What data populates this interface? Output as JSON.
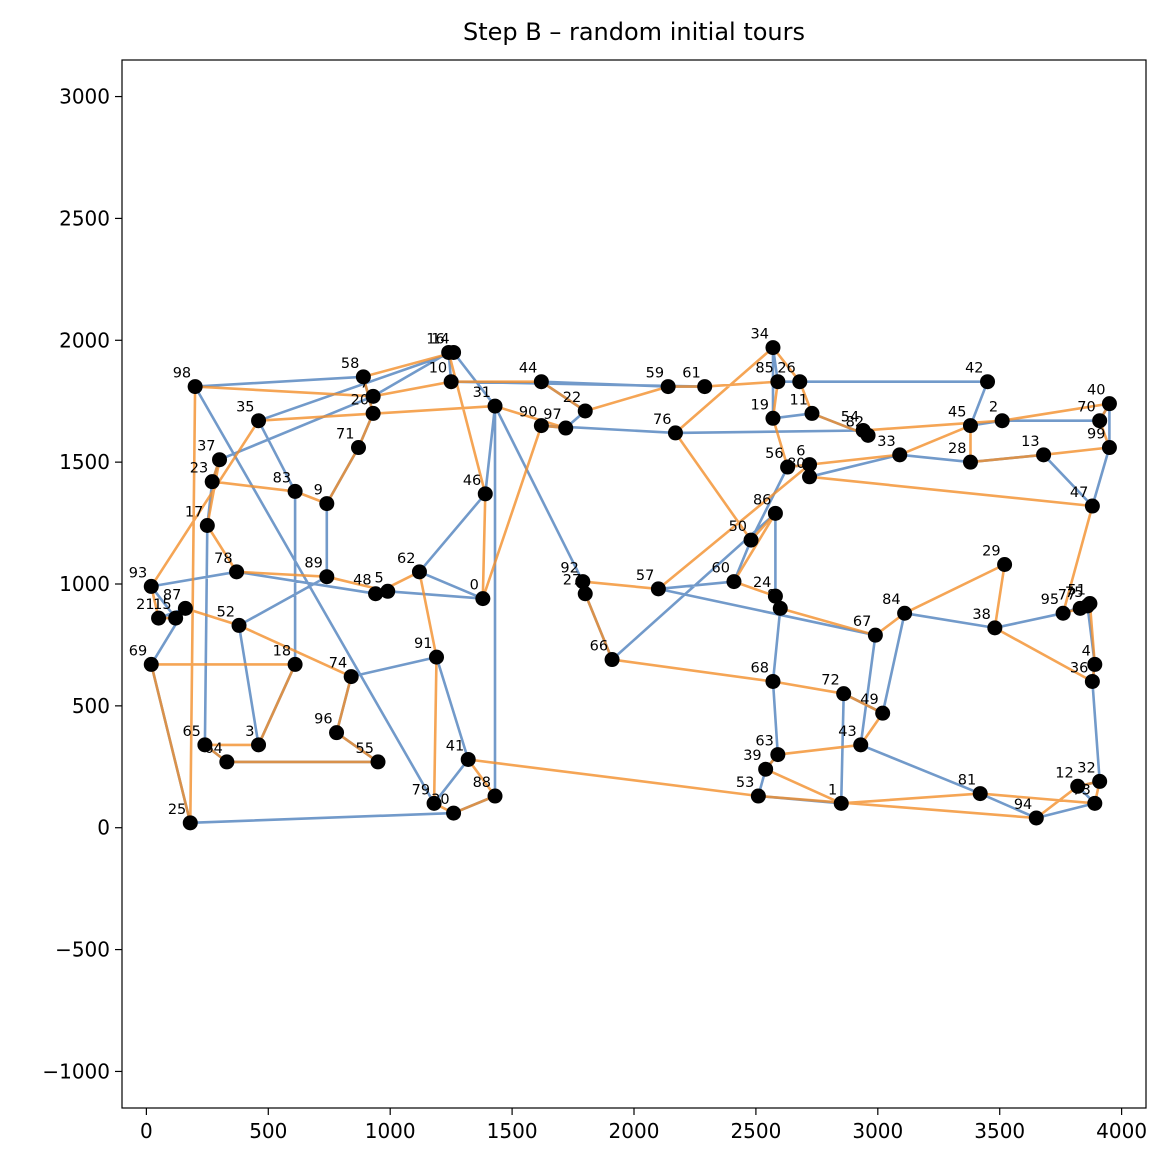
{
  "chart_data": {
    "type": "scatter",
    "title": "Step B – random initial tours",
    "xlabel": "",
    "ylabel": "",
    "xlim": [
      -100,
      4100
    ],
    "ylim": [
      -1150,
      3150
    ],
    "xticks": [
      0,
      500,
      1000,
      1500,
      2000,
      2500,
      3000,
      3500,
      4000
    ],
    "yticks": [
      -1000,
      -500,
      0,
      500,
      1000,
      1500,
      2000,
      2500,
      3000
    ],
    "xtick_labels": [
      "0",
      "500",
      "1000",
      "1500",
      "2000",
      "2500",
      "3000",
      "3500",
      "4000"
    ],
    "ytick_labels": [
      "−1000",
      "−500",
      "0",
      "500",
      "1000",
      "1500",
      "2000",
      "2500",
      "3000"
    ],
    "grid": false,
    "colors": {
      "tour_blue": "#4f81bd",
      "tour_orange": "#f28e2b",
      "city": "#000000"
    },
    "cities": [
      {
        "id": "0",
        "x": 1380,
        "y": 940
      },
      {
        "id": "1",
        "x": 2850,
        "y": 100
      },
      {
        "id": "2",
        "x": 3510,
        "y": 1670
      },
      {
        "id": "3",
        "x": 460,
        "y": 340
      },
      {
        "id": "4",
        "x": 3890,
        "y": 670
      },
      {
        "id": "5",
        "x": 990,
        "y": 970
      },
      {
        "id": "6",
        "x": 2720,
        "y": 1490
      },
      {
        "id": "7",
        "x": 930,
        "y": 1770
      },
      {
        "id": "8",
        "x": 2600,
        "y": 900
      },
      {
        "id": "9",
        "x": 740,
        "y": 1330
      },
      {
        "id": "10",
        "x": 1250,
        "y": 1830
      },
      {
        "id": "11",
        "x": 2730,
        "y": 1700
      },
      {
        "id": "12",
        "x": 3820,
        "y": 170
      },
      {
        "id": "13",
        "x": 3680,
        "y": 1530
      },
      {
        "id": "14",
        "x": 1260,
        "y": 1950
      },
      {
        "id": "15",
        "x": 120,
        "y": 860
      },
      {
        "id": "16",
        "x": 1240,
        "y": 1950
      },
      {
        "id": "17",
        "x": 250,
        "y": 1240
      },
      {
        "id": "18",
        "x": 610,
        "y": 670
      },
      {
        "id": "19",
        "x": 2570,
        "y": 1680
      },
      {
        "id": "20",
        "x": 930,
        "y": 1700
      },
      {
        "id": "21",
        "x": 50,
        "y": 860
      },
      {
        "id": "22",
        "x": 1800,
        "y": 1710
      },
      {
        "id": "23",
        "x": 270,
        "y": 1420
      },
      {
        "id": "24",
        "x": 2580,
        "y": 950
      },
      {
        "id": "25",
        "x": 180,
        "y": 20
      },
      {
        "id": "26",
        "x": 2680,
        "y": 1830
      },
      {
        "id": "27",
        "x": 1800,
        "y": 960
      },
      {
        "id": "28",
        "x": 3380,
        "y": 1500
      },
      {
        "id": "29",
        "x": 3520,
        "y": 1080
      },
      {
        "id": "30",
        "x": 1260,
        "y": 60
      },
      {
        "id": "31",
        "x": 1430,
        "y": 1730
      },
      {
        "id": "32",
        "x": 3910,
        "y": 190
      },
      {
        "id": "33",
        "x": 3090,
        "y": 1530
      },
      {
        "id": "34",
        "x": 2570,
        "y": 1970
      },
      {
        "id": "35",
        "x": 460,
        "y": 1670
      },
      {
        "id": "36",
        "x": 3880,
        "y": 600
      },
      {
        "id": "37",
        "x": 300,
        "y": 1510
      },
      {
        "id": "38",
        "x": 3480,
        "y": 820
      },
      {
        "id": "39",
        "x": 2540,
        "y": 240
      },
      {
        "id": "40",
        "x": 3950,
        "y": 1740
      },
      {
        "id": "41",
        "x": 1320,
        "y": 280
      },
      {
        "id": "42",
        "x": 3450,
        "y": 1830
      },
      {
        "id": "43",
        "x": 2930,
        "y": 340
      },
      {
        "id": "44",
        "x": 1620,
        "y": 1830
      },
      {
        "id": "45",
        "x": 3380,
        "y": 1650
      },
      {
        "id": "46",
        "x": 1390,
        "y": 1370
      },
      {
        "id": "47",
        "x": 3880,
        "y": 1320
      },
      {
        "id": "48",
        "x": 940,
        "y": 960
      },
      {
        "id": "49",
        "x": 3020,
        "y": 470
      },
      {
        "id": "50",
        "x": 2480,
        "y": 1180
      },
      {
        "id": "51",
        "x": 3870,
        "y": 920
      },
      {
        "id": "52",
        "x": 380,
        "y": 830
      },
      {
        "id": "53",
        "x": 2510,
        "y": 130
      },
      {
        "id": "54",
        "x": 2940,
        "y": 1630
      },
      {
        "id": "55",
        "x": 950,
        "y": 270
      },
      {
        "id": "56",
        "x": 2630,
        "y": 1480
      },
      {
        "id": "57",
        "x": 2100,
        "y": 980
      },
      {
        "id": "58",
        "x": 890,
        "y": 1850
      },
      {
        "id": "59",
        "x": 2140,
        "y": 1810
      },
      {
        "id": "60",
        "x": 2410,
        "y": 1010
      },
      {
        "id": "61",
        "x": 2290,
        "y": 1810
      },
      {
        "id": "62",
        "x": 1120,
        "y": 1050
      },
      {
        "id": "63",
        "x": 2590,
        "y": 300
      },
      {
        "id": "64",
        "x": 330,
        "y": 270
      },
      {
        "id": "65",
        "x": 240,
        "y": 340
      },
      {
        "id": "66",
        "x": 1910,
        "y": 690
      },
      {
        "id": "67",
        "x": 2990,
        "y": 790
      },
      {
        "id": "68",
        "x": 2570,
        "y": 600
      },
      {
        "id": "69",
        "x": 20,
        "y": 670
      },
      {
        "id": "70",
        "x": 3910,
        "y": 1670
      },
      {
        "id": "71",
        "x": 870,
        "y": 1560
      },
      {
        "id": "72",
        "x": 2860,
        "y": 550
      },
      {
        "id": "73",
        "x": 3890,
        "y": 100
      },
      {
        "id": "74",
        "x": 840,
        "y": 620
      },
      {
        "id": "75",
        "x": 3860,
        "y": 910
      },
      {
        "id": "76",
        "x": 2170,
        "y": 1620
      },
      {
        "id": "77",
        "x": 3830,
        "y": 900
      },
      {
        "id": "78",
        "x": 370,
        "y": 1050
      },
      {
        "id": "79",
        "x": 1180,
        "y": 100
      },
      {
        "id": "80",
        "x": 2720,
        "y": 1440
      },
      {
        "id": "81",
        "x": 3420,
        "y": 140
      },
      {
        "id": "82",
        "x": 2960,
        "y": 1610
      },
      {
        "id": "83",
        "x": 610,
        "y": 1380
      },
      {
        "id": "84",
        "x": 3110,
        "y": 880
      },
      {
        "id": "85",
        "x": 2590,
        "y": 1830
      },
      {
        "id": "86",
        "x": 2580,
        "y": 1290
      },
      {
        "id": "87",
        "x": 160,
        "y": 900
      },
      {
        "id": "88",
        "x": 1430,
        "y": 130
      },
      {
        "id": "89",
        "x": 740,
        "y": 1030
      },
      {
        "id": "90",
        "x": 1620,
        "y": 1650
      },
      {
        "id": "91",
        "x": 1190,
        "y": 700
      },
      {
        "id": "92",
        "x": 1790,
        "y": 1010
      },
      {
        "id": "93",
        "x": 20,
        "y": 990
      },
      {
        "id": "94",
        "x": 3650,
        "y": 40
      },
      {
        "id": "95",
        "x": 3760,
        "y": 880
      },
      {
        "id": "96",
        "x": 780,
        "y": 390
      },
      {
        "id": "97",
        "x": 1720,
        "y": 1640
      },
      {
        "id": "98",
        "x": 200,
        "y": 1810
      },
      {
        "id": "99",
        "x": 3950,
        "y": 1560
      }
    ],
    "series": [
      {
        "color": "#4f81bd",
        "tour": [
          "98",
          "58",
          "20",
          "71",
          "9",
          "89",
          "52",
          "3",
          "18",
          "83",
          "35",
          "14",
          "31",
          "46",
          "62",
          "0",
          "5",
          "48",
          "78",
          "93",
          "15",
          "21",
          "87",
          "69",
          "25",
          "30",
          "88",
          "31",
          "92",
          "27",
          "66",
          "86",
          "24",
          "8",
          "68",
          "63",
          "39",
          "53",
          "1",
          "72",
          "49",
          "84",
          "38",
          "95",
          "51",
          "77",
          "75",
          "4",
          "36",
          "32",
          "12",
          "73",
          "94",
          "81",
          "43",
          "67",
          "57",
          "60",
          "50",
          "56",
          "6",
          "80",
          "33",
          "28",
          "13",
          "47",
          "99",
          "40",
          "70",
          "2",
          "45",
          "42",
          "26",
          "85",
          "34",
          "19",
          "11",
          "82",
          "54",
          "76",
          "90",
          "97",
          "22",
          "44",
          "59",
          "61",
          "10",
          "16",
          "7",
          "37",
          "23",
          "17",
          "65",
          "64",
          "55",
          "96",
          "74",
          "91",
          "41",
          "79",
          "98"
        ]
      },
      {
        "color": "#f28e2b",
        "tour": [
          "98",
          "7",
          "10",
          "44",
          "22",
          "59",
          "61",
          "85",
          "19",
          "56",
          "33",
          "45",
          "28",
          "13",
          "99",
          "70",
          "40",
          "2",
          "54",
          "82",
          "11",
          "26",
          "34",
          "76",
          "50",
          "86",
          "60",
          "24",
          "8",
          "67",
          "84",
          "29",
          "38",
          "36",
          "4",
          "51",
          "77",
          "95",
          "47",
          "80",
          "6",
          "57",
          "92",
          "27",
          "66",
          "68",
          "72",
          "49",
          "43",
          "63",
          "39",
          "1",
          "81",
          "73",
          "32",
          "12",
          "94",
          "53",
          "41",
          "88",
          "30",
          "79",
          "91",
          "62",
          "48",
          "5",
          "89",
          "78",
          "17",
          "37",
          "23",
          "83",
          "9",
          "71",
          "20",
          "58",
          "14",
          "16",
          "46",
          "0",
          "90",
          "97",
          "31",
          "35",
          "93",
          "21",
          "15",
          "87",
          "52",
          "74",
          "96",
          "55",
          "64",
          "65",
          "3",
          "18",
          "69",
          "25",
          "98"
        ]
      }
    ]
  }
}
